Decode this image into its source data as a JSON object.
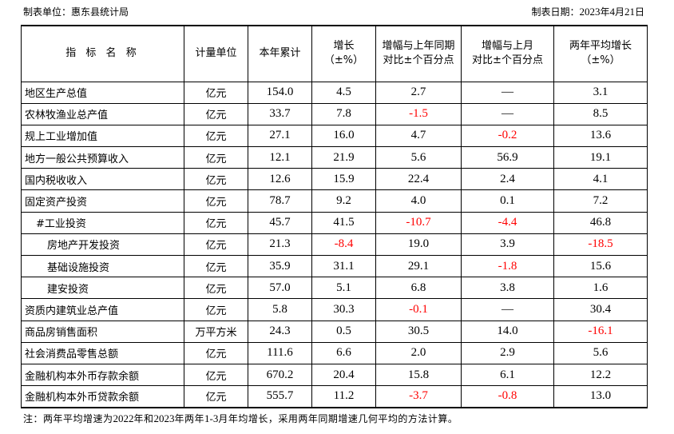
{
  "header": {
    "unit": "制表单位：惠东县统计局",
    "date": "制表日期：2023年4月21日"
  },
  "columns": [
    "指 标 名 称",
    "计量单位",
    "本年累计",
    "增长\n（±%）",
    "增幅与上年同期\n对比±个百分点",
    "增幅与上月\n对比±个百分点",
    "两年平均增长\n（±%）"
  ],
  "rows": [
    {
      "name": "地区生产总值",
      "indent": 0,
      "unit": "亿元",
      "cells": [
        "154.0",
        "4.5",
        "2.7",
        "—",
        "3.1"
      ]
    },
    {
      "name": "农林牧渔业总产值",
      "indent": 0,
      "unit": "亿元",
      "cells": [
        "33.7",
        "7.8",
        "-1.5",
        "—",
        "8.5"
      ]
    },
    {
      "name": "规上工业增加值",
      "indent": 0,
      "unit": "亿元",
      "cells": [
        "27.1",
        "16.0",
        "4.7",
        "-0.2",
        "13.6"
      ]
    },
    {
      "name": "地方一般公共预算收入",
      "indent": 0,
      "unit": "亿元",
      "cells": [
        "12.1",
        "21.9",
        "5.6",
        "56.9",
        "19.1"
      ]
    },
    {
      "name": "国内税收收入",
      "indent": 0,
      "unit": "亿元",
      "cells": [
        "12.6",
        "15.9",
        "22.4",
        "2.4",
        "4.1"
      ]
    },
    {
      "name": "固定资产投资",
      "indent": 0,
      "unit": "亿元",
      "cells": [
        "78.7",
        "9.2",
        "4.0",
        "0.1",
        "7.2"
      ]
    },
    {
      "name": "#工业投资",
      "indent": 1,
      "unit": "亿元",
      "cells": [
        "45.7",
        "41.5",
        "-10.7",
        "-4.4",
        "46.8"
      ]
    },
    {
      "name": "房地产开发投资",
      "indent": 2,
      "unit": "亿元",
      "cells": [
        "21.3",
        "-8.4",
        "19.0",
        "3.9",
        "-18.5"
      ]
    },
    {
      "name": "基础设施投资",
      "indent": 2,
      "unit": "亿元",
      "cells": [
        "35.9",
        "31.1",
        "29.1",
        "-1.8",
        "15.6"
      ]
    },
    {
      "name": "建安投资",
      "indent": 2,
      "unit": "亿元",
      "cells": [
        "57.0",
        "5.1",
        "6.8",
        "3.8",
        "1.6"
      ]
    },
    {
      "name": "资质内建筑业总产值",
      "indent": 0,
      "unit": "亿元",
      "cells": [
        "5.8",
        "30.3",
        "-0.1",
        "—",
        "30.4"
      ]
    },
    {
      "name": "商品房销售面积",
      "indent": 0,
      "unit": "万平方米",
      "cells": [
        "24.3",
        "0.5",
        "30.5",
        "14.0",
        "-16.1"
      ]
    },
    {
      "name": "社会消费品零售总额",
      "indent": 0,
      "unit": "亿元",
      "cells": [
        "111.6",
        "6.6",
        "2.0",
        "2.9",
        "5.6"
      ]
    },
    {
      "name": "金融机构本外币存款余额",
      "indent": 0,
      "unit": "亿元",
      "cells": [
        "670.2",
        "20.4",
        "15.8",
        "6.1",
        "12.2"
      ]
    },
    {
      "name": "金融机构本外币贷款余额",
      "indent": 0,
      "unit": "亿元",
      "cells": [
        "555.7",
        "11.2",
        "-3.7",
        "-0.8",
        "13.0"
      ]
    }
  ],
  "note": "注：两年平均增速为2022年和2023年两年1-3月年均增长，采用两年同期增速几何平均的方法计算。",
  "colors": {
    "negative": "#ff0000",
    "text": "#000000"
  }
}
